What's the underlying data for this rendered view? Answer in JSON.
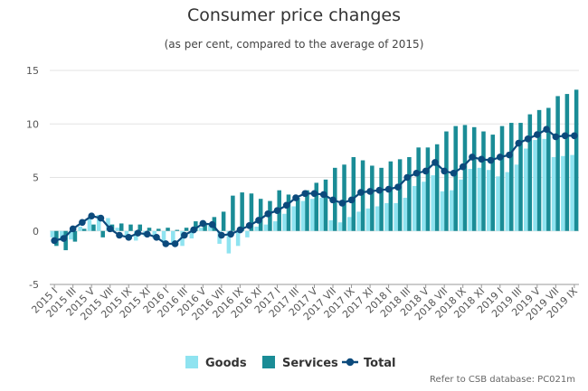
{
  "title": "Consumer price changes",
  "subtitle": "(as per cent, compared to the average of 2015)",
  "credit": "Refer to CSB database: PC021m",
  "colors": {
    "goods": "#8fe3f0",
    "services": "#1a8c96",
    "total": "#0c4a7c",
    "grid": "#e3e3e3",
    "axis": "#999999"
  },
  "chart_data": {
    "type": "bar",
    "ylim": [
      -5,
      15
    ],
    "yticks": [
      -5,
      0,
      5,
      10,
      15
    ],
    "x_tick_labels": [
      "2015 I",
      "2015 III",
      "2015 V",
      "2015 VII",
      "2015 IX",
      "2015 XI",
      "2016 I",
      "2016 III",
      "2016 V",
      "2016 VII",
      "2016 IX",
      "2016 XI",
      "2017 I",
      "2017 III",
      "2017 V",
      "2017 VII",
      "2017 IX",
      "2017 XI",
      "2018 I",
      "2018 III",
      "2018 V",
      "2018 VII",
      "2018 IX",
      "2018 XI",
      "2019 I",
      "2019 III",
      "2019 V",
      "2019 VII",
      "2019 IX"
    ],
    "categories": [
      "2015 I",
      "2015 II",
      "2015 III",
      "2015 IV",
      "2015 V",
      "2015 VI",
      "2015 VII",
      "2015 VIII",
      "2015 IX",
      "2015 X",
      "2015 XI",
      "2015 XII",
      "2016 I",
      "2016 II",
      "2016 III",
      "2016 IV",
      "2016 V",
      "2016 VI",
      "2016 VII",
      "2016 VIII",
      "2016 IX",
      "2016 X",
      "2016 XI",
      "2016 XII",
      "2017 I",
      "2017 II",
      "2017 III",
      "2017 IV",
      "2017 V",
      "2017 VI",
      "2017 VII",
      "2017 VIII",
      "2017 IX",
      "2017 X",
      "2017 XI",
      "2017 XII",
      "2018 I",
      "2018 II",
      "2018 III",
      "2018 IV",
      "2018 V",
      "2018 VI",
      "2018 VII",
      "2018 VIII",
      "2018 IX",
      "2018 X",
      "2018 XI",
      "2018 XII",
      "2019 I",
      "2019 II",
      "2019 III",
      "2019 IV",
      "2019 V",
      "2019 VI",
      "2019 VII",
      "2019 VIII",
      "2019 IX"
    ],
    "series": [
      {
        "name": "Goods",
        "type": "bar",
        "values": [
          -0.6,
          -0.9,
          -0.8,
          0.4,
          1.2,
          1.5,
          1.2,
          0.3,
          -0.6,
          -0.9,
          -0.5,
          -0.7,
          -1.1,
          -1.3,
          -1.4,
          -0.7,
          0.3,
          0.5,
          -1.2,
          -2.1,
          -1.4,
          -0.6,
          0.4,
          0.6,
          0.9,
          1.6,
          2.3,
          2.8,
          3.0,
          3.1,
          1.0,
          0.8,
          1.3,
          1.8,
          2.1,
          2.3,
          2.6,
          2.6,
          3.1,
          4.2,
          4.6,
          5.2,
          3.7,
          3.8,
          4.8,
          5.8,
          5.9,
          5.7,
          5.1,
          5.5,
          6.2,
          7.7,
          8.5,
          8.6,
          6.9,
          7.0,
          7.1
        ]
      },
      {
        "name": "Services",
        "type": "bar",
        "values": [
          -1.4,
          -1.8,
          -1.0,
          0.2,
          0.6,
          -0.6,
          0.6,
          0.7,
          0.6,
          0.6,
          0.3,
          0.2,
          0.3,
          0.1,
          0.3,
          0.9,
          0.6,
          1.3,
          1.8,
          3.3,
          3.6,
          3.5,
          3.0,
          2.8,
          3.8,
          3.4,
          3.1,
          3.8,
          4.5,
          4.8,
          5.9,
          6.2,
          6.9,
          6.6,
          6.1,
          5.9,
          6.5,
          6.7,
          6.9,
          7.8,
          7.8,
          8.1,
          9.3,
          9.8,
          9.9,
          9.7,
          9.3,
          9.0,
          9.8,
          10.1,
          10.1,
          10.9,
          11.3,
          11.5,
          12.6,
          12.8,
          13.2
        ]
      },
      {
        "name": "Total",
        "type": "line",
        "values": [
          -0.9,
          -0.7,
          0.2,
          0.8,
          1.4,
          1.2,
          0.2,
          -0.4,
          -0.6,
          -0.2,
          -0.3,
          -0.6,
          -1.2,
          -1.2,
          -0.4,
          0.1,
          0.7,
          0.6,
          -0.4,
          -0.3,
          0.1,
          0.5,
          1.0,
          1.6,
          1.9,
          2.4,
          3.1,
          3.5,
          3.5,
          3.4,
          2.9,
          2.6,
          2.9,
          3.6,
          3.7,
          3.8,
          3.9,
          4.1,
          5.0,
          5.4,
          5.6,
          6.4,
          5.6,
          5.4,
          6.0,
          6.9,
          6.7,
          6.6,
          6.9,
          7.1,
          8.2,
          8.6,
          9.0,
          9.5,
          8.8,
          8.9,
          8.9
        ]
      }
    ],
    "legend": {
      "position": "bottom-center",
      "items": [
        "Goods",
        "Services",
        "Total"
      ]
    },
    "grid": true
  }
}
